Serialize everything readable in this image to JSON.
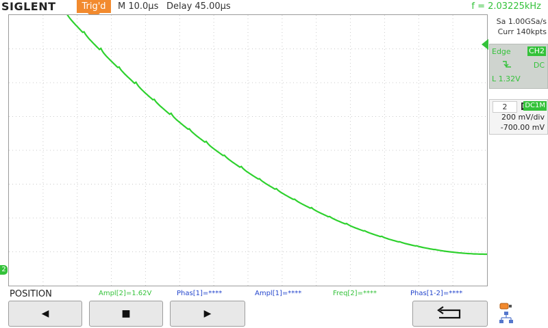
{
  "header": {
    "logo": "SIGLENT",
    "trigger_status": "Trig'd",
    "timebase": "M 10.0µs",
    "delay": "Delay 45.00µs",
    "frequency": "f = 2.03225kHz"
  },
  "acquisition": {
    "sample_rate": "Sa 1.00GSa/s",
    "memory_depth": "Curr 140kpts"
  },
  "trigger_panel": {
    "type": "Edge",
    "source": "CH2",
    "slope_icon": "falling-edge-icon",
    "coupling": "DC",
    "level": "L  1.32V"
  },
  "channel_panel": {
    "number": "2",
    "coupling": "DC1M",
    "scale": "200 mV/div",
    "offset": "-700.00 mV"
  },
  "marker": {
    "channel": "2"
  },
  "softkey_label": "POSITION",
  "measurements": [
    {
      "text": "Ampl[2]=1.62V",
      "color": "#34c23a"
    },
    {
      "text": "Phas[1]=****",
      "color": "#2244cc"
    },
    {
      "text": "Ampl[1]=****",
      "color": "#2244cc"
    },
    {
      "text": "Freq[2]=****",
      "color": "#34c23a"
    },
    {
      "text": "Phas[1-2]=****",
      "color": "#2244cc"
    }
  ],
  "buttons": [
    {
      "icon": "left-arrow-icon",
      "glyph": "◀"
    },
    {
      "icon": "stop-square-icon",
      "glyph": "■"
    },
    {
      "icon": "right-arrow-icon",
      "glyph": "▶"
    },
    {
      "icon": "return-arrow-icon",
      "glyph": "⮌"
    }
  ],
  "colors": {
    "trace": "#2ed12e",
    "trigger_badge": "#f28a2e",
    "channel": "#34c23a"
  },
  "chart_data": {
    "type": "line",
    "waveform": "stepped decaying curve",
    "x_divisions": 14,
    "y_divisions": 8
  }
}
